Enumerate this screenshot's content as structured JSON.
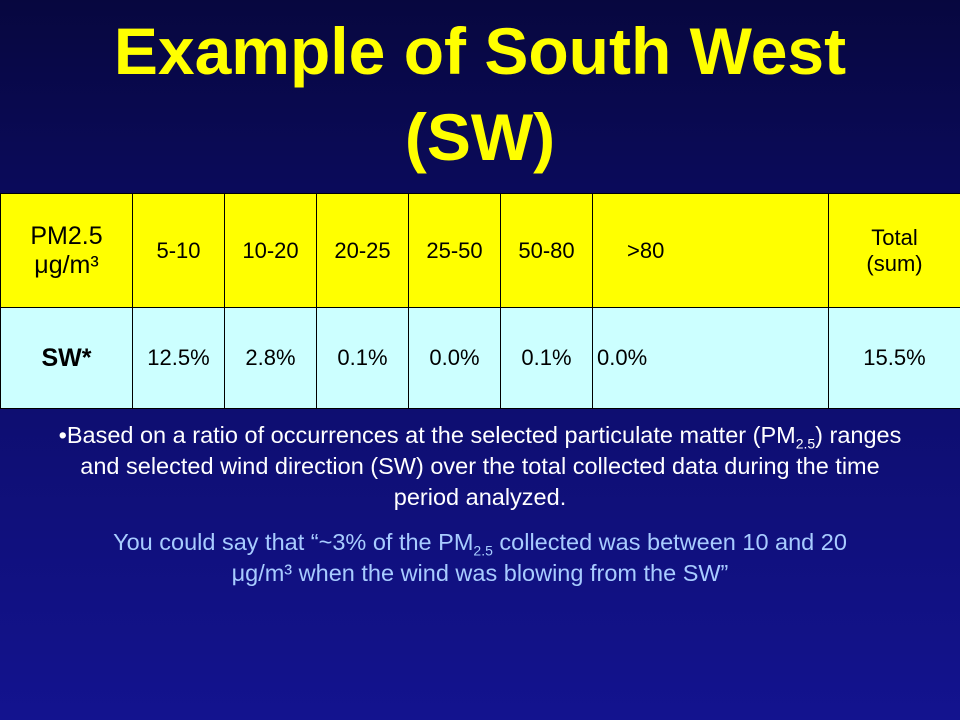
{
  "title": {
    "lines": [
      "Example of South West",
      "(SW)"
    ]
  },
  "table": {
    "header": [
      "PM2.5 μg/m³",
      "5-10",
      "10-20",
      "20-25",
      "25-50",
      "50-80",
      ">80",
      "Total (sum)"
    ],
    "rows": [
      [
        "SW*",
        "12.5%",
        "2.8%",
        "0.1%",
        "0.0%",
        "0.1%",
        "0.0%",
        "15.5%"
      ]
    ]
  },
  "notes": [
    {
      "parts": [
        "•Based on a ratio of occurrences at the selected particulate matter (PM",
        "2.5",
        ") ranges and selected wind direction (SW) over the total collected data during the time period analyzed."
      ]
    },
    {
      "parts": [
        "You could say that “~3% of the PM",
        "2.5",
        " collected was between 10 and 20 μg/m³ when the wind was blowing from the SW”"
      ]
    }
  ]
}
